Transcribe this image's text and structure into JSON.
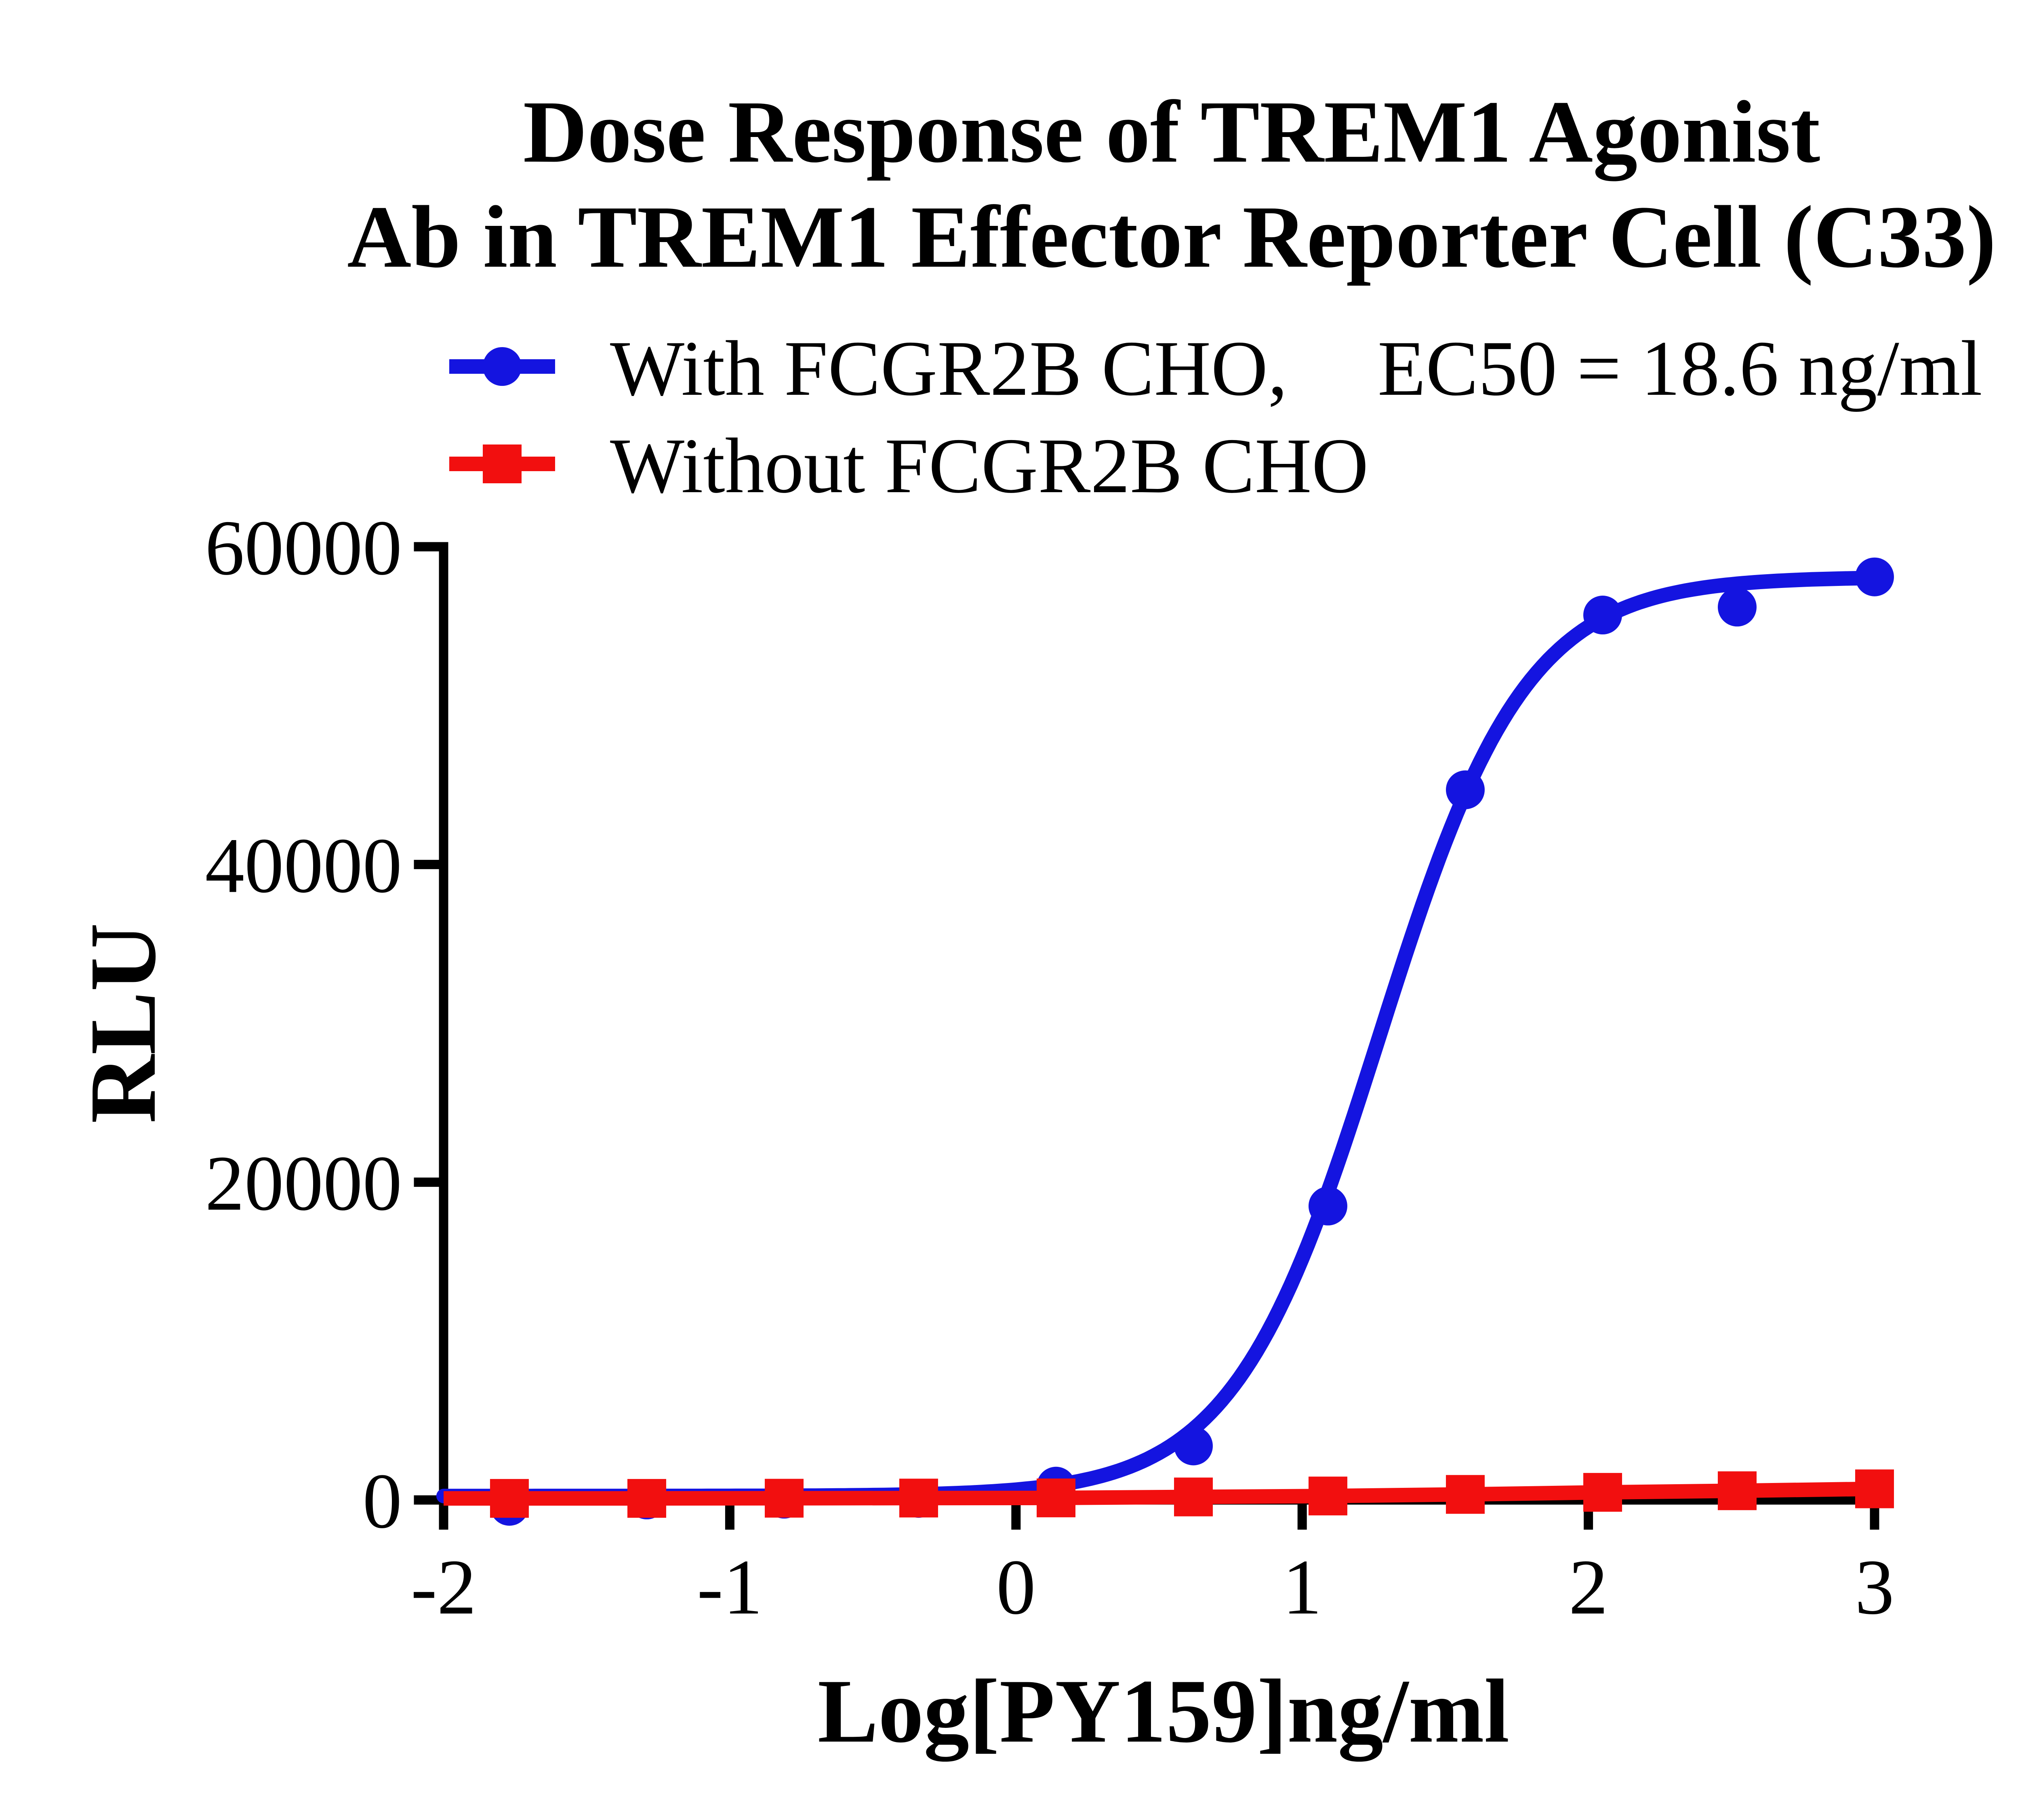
{
  "page": {
    "background": "#ffffff",
    "text_color": "#000000",
    "axis_color": "#000000"
  },
  "chart_data": {
    "type": "line",
    "title_lines": [
      "Dose Response of TREM1 Agonist",
      "Ab in TREM1 Effector Reporter Cell (C33)"
    ],
    "xlabel": "Log[PY159]ng/ml",
    "ylabel": "RLU",
    "xlim": [
      -2,
      3
    ],
    "ylim": [
      0,
      60000
    ],
    "x_ticks": [
      -2,
      -1,
      0,
      1,
      2,
      3
    ],
    "y_ticks": [
      0,
      20000,
      40000,
      60000
    ],
    "grid": false,
    "legend_position": "top-left-above-plot",
    "series": [
      {
        "name": "With FCGR2B CHO",
        "legend_label": "With FCGR2B CHO,",
        "legend_extra": "EC50 = 18.6 ng/ml",
        "color": "#1414e0",
        "marker": "circle",
        "x": [
          -1.77,
          -1.29,
          -0.81,
          -0.34,
          0.14,
          0.62,
          1.09,
          1.57,
          2.05,
          2.52,
          3.0
        ],
        "y": [
          -400,
          0,
          50,
          100,
          870,
          3400,
          18500,
          44700,
          55700,
          56200,
          58100
        ],
        "fit": {
          "model": "4PL",
          "bottom": 250,
          "top": 58100,
          "hill_slope": 1.7,
          "log_ec50": 1.2695,
          "ec50": "18.6 ng/ml"
        }
      },
      {
        "name": "Without FCGR2B CHO",
        "legend_label": "Without FCGR2B CHO",
        "legend_extra": "",
        "color": "#f20f0f",
        "marker": "square",
        "x": [
          -1.77,
          -1.29,
          -0.81,
          -0.34,
          0.14,
          0.62,
          1.09,
          1.57,
          2.05,
          2.52,
          3.0
        ],
        "y": [
          100,
          100,
          110,
          120,
          130,
          190,
          250,
          350,
          480,
          580,
          700
        ]
      }
    ]
  }
}
